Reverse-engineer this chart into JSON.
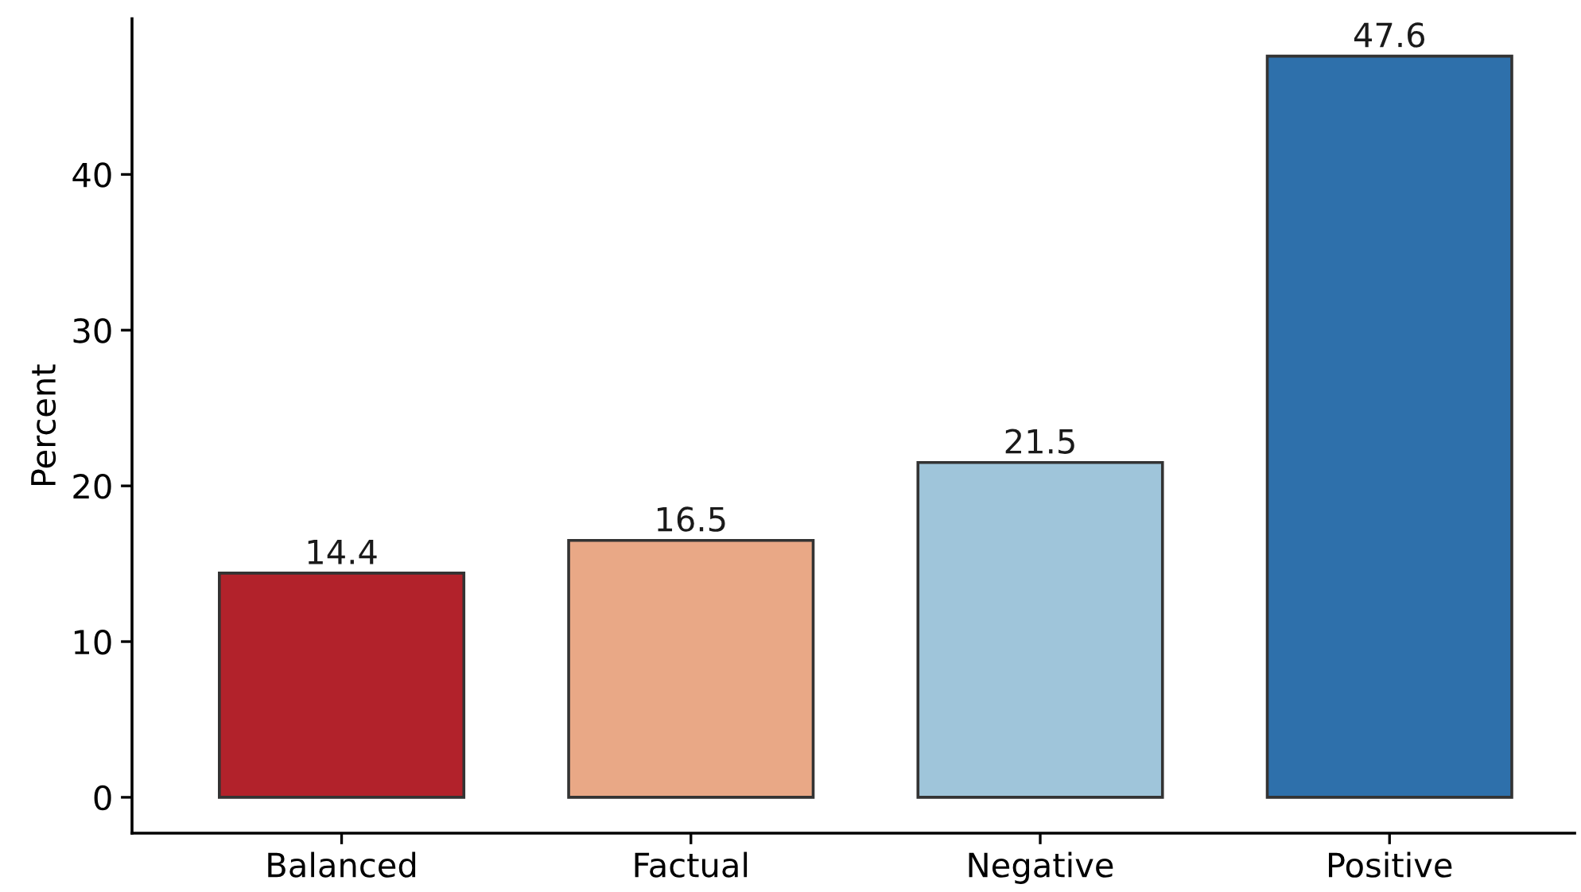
{
  "chart_data": {
    "type": "bar",
    "ylabel": "Percent",
    "categories": [
      "Balanced",
      "Factual",
      "Negative",
      "Positive"
    ],
    "values": [
      14.4,
      16.5,
      21.5,
      47.6
    ],
    "colors": [
      "#b2222b",
      "#e9a886",
      "#9fc5da",
      "#2e70ab"
    ],
    "ylim": [
      -2.3,
      50
    ],
    "yticks": [
      0,
      10,
      20,
      30,
      40
    ],
    "grid": false,
    "data_labels": true
  }
}
